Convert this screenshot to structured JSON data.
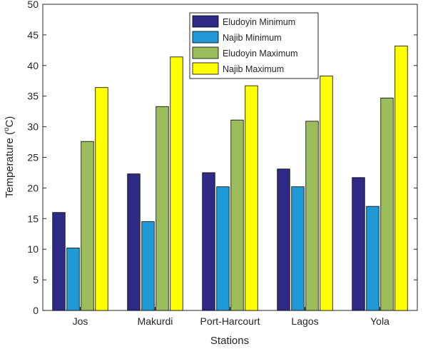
{
  "chart_data": {
    "type": "bar",
    "title": "",
    "xlabel": "Stations",
    "ylabel_main": "Temperature (",
    "ylabel_sup": "o",
    "ylabel_end": "C)",
    "ylim": [
      0,
      50
    ],
    "yticks": [
      0,
      5,
      10,
      15,
      20,
      25,
      30,
      35,
      40,
      45,
      50
    ],
    "grid": false,
    "legend": "top-center",
    "categories": [
      "Jos",
      "Makurdi",
      "Port-Harcourt",
      "Lagos",
      "Yola"
    ],
    "series": [
      {
        "name": "Eludoyin Minimum",
        "color": "#2e2a86",
        "values": [
          16.0,
          22.3,
          22.5,
          23.1,
          21.7
        ]
      },
      {
        "name": "Najib Minimum",
        "color": "#1f9ad6",
        "values": [
          10.2,
          14.5,
          20.2,
          20.2,
          17.0
        ]
      },
      {
        "name": "Eludoyin Maximum",
        "color": "#9dbc5c",
        "values": [
          27.6,
          33.3,
          31.1,
          30.9,
          34.7
        ]
      },
      {
        "name": "Najib Maximum",
        "color": "#ffff00",
        "values": [
          36.4,
          41.4,
          36.7,
          38.3,
          43.2
        ]
      }
    ]
  }
}
